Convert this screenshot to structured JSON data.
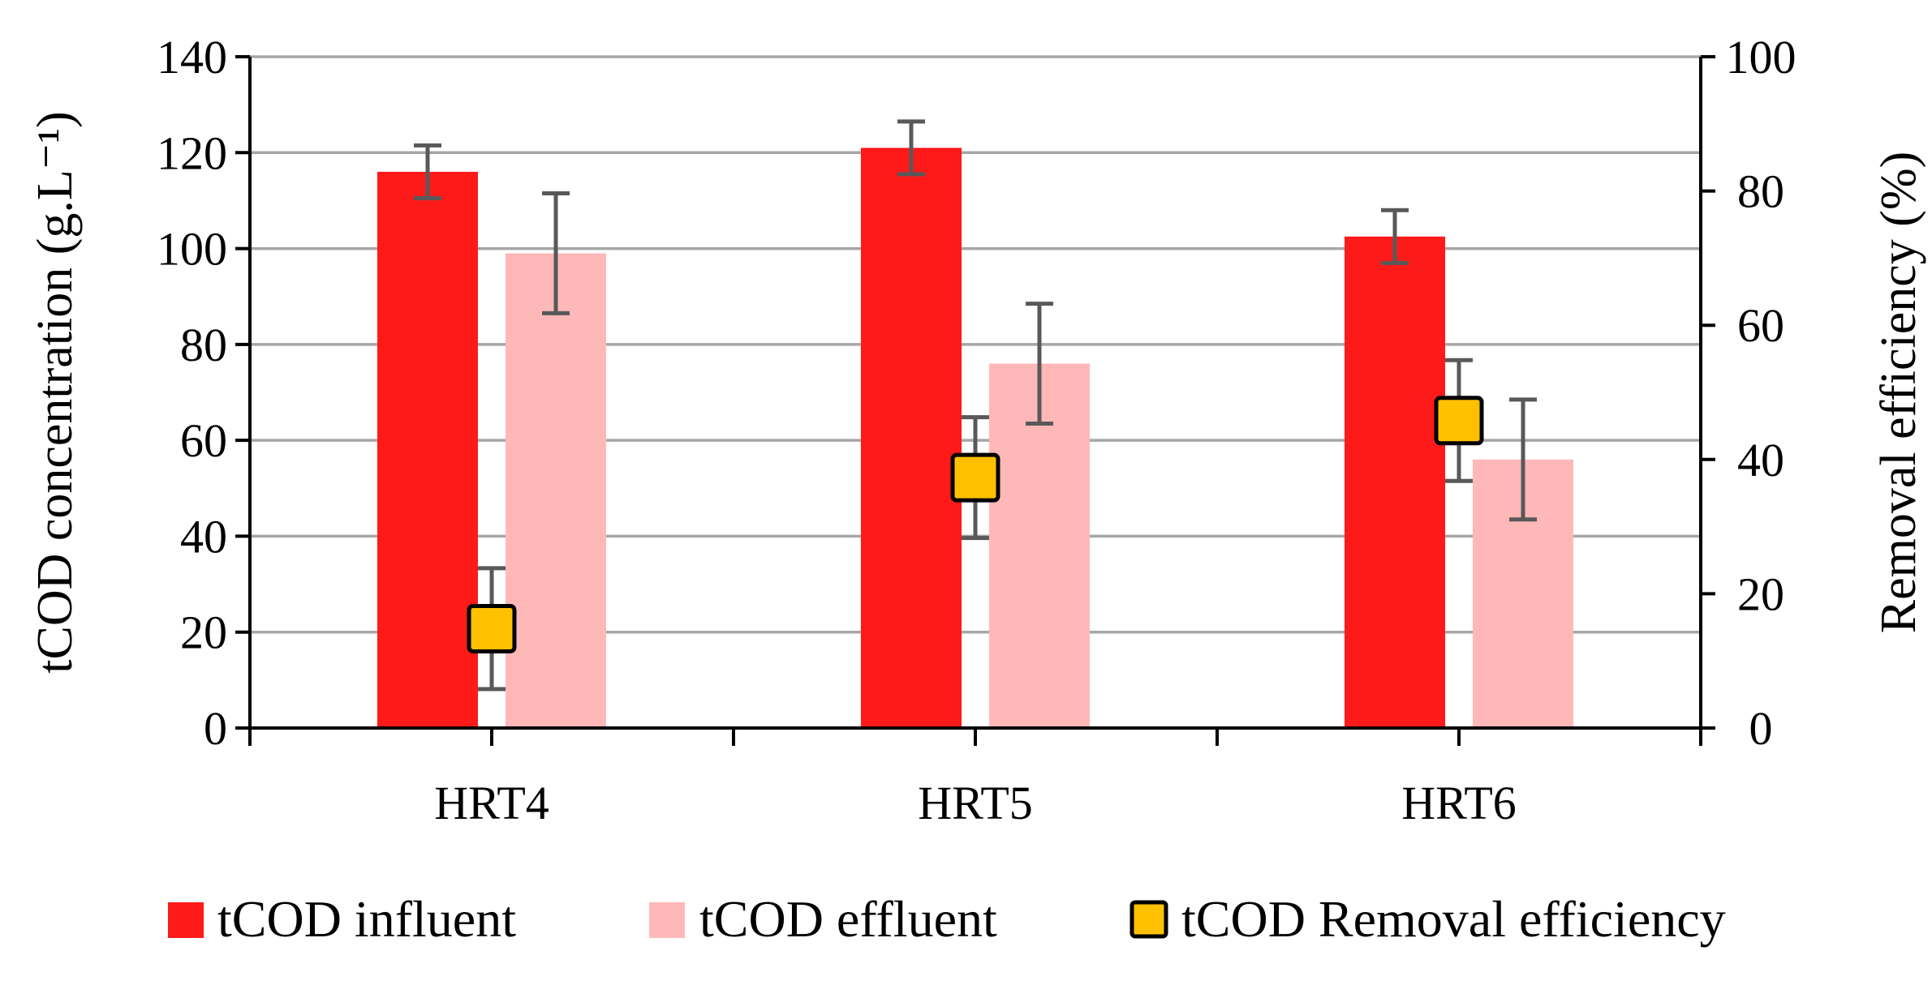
{
  "chart_data": {
    "type": "bar",
    "categories": [
      "HRT4",
      "HRT5",
      "HRT6"
    ],
    "series": [
      {
        "name": "tCOD influent",
        "kind": "bar",
        "axis": "left",
        "color": "#ff1a1a",
        "values": [
          116,
          121,
          102.5
        ],
        "errors": [
          5.5,
          5.5,
          5.5
        ]
      },
      {
        "name": "tCOD effluent",
        "kind": "bar",
        "axis": "left",
        "color": "#ffb8b8",
        "values": [
          99,
          76,
          56
        ],
        "errors": [
          12.5,
          12.5,
          12.5
        ]
      },
      {
        "name": "tCOD Removal efficiency",
        "kind": "marker",
        "axis": "right",
        "color": "#ffc000",
        "values": [
          14.8,
          37.3,
          45.8
        ],
        "errors": [
          9,
          9,
          9
        ]
      }
    ],
    "ylabel": "tCOD concentration (g.L⁻¹)",
    "y2label": "Removal efficiency (%)",
    "ylim": [
      0,
      140
    ],
    "y2lim": [
      0,
      100
    ],
    "yticks": [
      "0",
      "20",
      "40",
      "60",
      "80",
      "100",
      "120",
      "140"
    ],
    "y2ticks": [
      "0",
      "20",
      "40",
      "60",
      "80",
      "100"
    ],
    "grid": true,
    "legend_position": "bottom"
  }
}
